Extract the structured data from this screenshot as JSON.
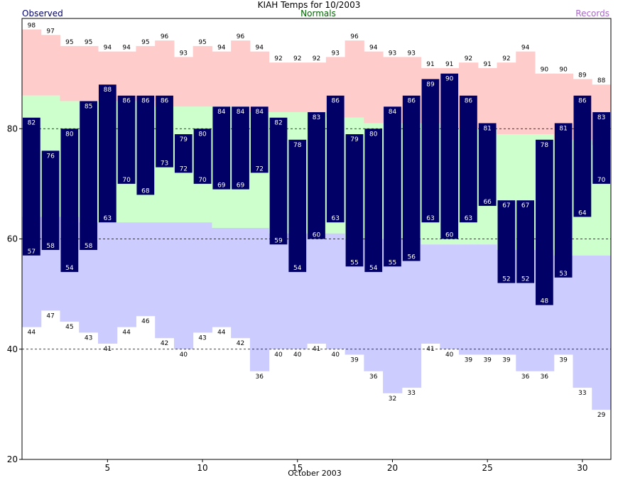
{
  "chart_data": {
    "type": "bar",
    "title": "KIAH Temps for 10/2003",
    "legend": {
      "observed": "Observed",
      "normals": "Normals",
      "records": "Records"
    },
    "xlabel": "October 2003",
    "ylabel": "",
    "ylim": [
      20,
      100
    ],
    "yticks": [
      20,
      40,
      60,
      80
    ],
    "xticks": [
      5,
      10,
      15,
      20,
      25,
      30
    ],
    "grid_y": [
      40,
      60,
      80
    ],
    "days": [
      1,
      2,
      3,
      4,
      5,
      6,
      7,
      8,
      9,
      10,
      11,
      12,
      13,
      14,
      15,
      16,
      17,
      18,
      19,
      20,
      21,
      22,
      23,
      24,
      25,
      26,
      27,
      28,
      29,
      30,
      31
    ],
    "observed_high": [
      82,
      76,
      80,
      85,
      88,
      86,
      86,
      86,
      79,
      80,
      84,
      84,
      84,
      82,
      78,
      83,
      86,
      79,
      80,
      84,
      86,
      89,
      90,
      86,
      81,
      67,
      67,
      78,
      81,
      86,
      83
    ],
    "observed_low": [
      57,
      58,
      54,
      58,
      63,
      70,
      68,
      73,
      72,
      70,
      69,
      69,
      72,
      59,
      54,
      60,
      63,
      55,
      54,
      55,
      56,
      63,
      60,
      63,
      66,
      52,
      52,
      48,
      53,
      64,
      70
    ],
    "normal_high": [
      86,
      86,
      85,
      85,
      85,
      85,
      85,
      84,
      84,
      84,
      84,
      84,
      83,
      83,
      83,
      83,
      82,
      82,
      81,
      81,
      81,
      81,
      80,
      80,
      80,
      79,
      79,
      79,
      78,
      78,
      77
    ],
    "normal_low": [
      64,
      64,
      64,
      63,
      63,
      63,
      63,
      63,
      63,
      63,
      62,
      62,
      62,
      61,
      61,
      61,
      61,
      60,
      60,
      60,
      60,
      59,
      59,
      59,
      59,
      58,
      58,
      58,
      57,
      57,
      57
    ],
    "record_high": [
      98,
      97,
      95,
      95,
      94,
      94,
      95,
      96,
      93,
      95,
      94,
      96,
      94,
      92,
      92,
      92,
      93,
      96,
      94,
      93,
      93,
      91,
      91,
      92,
      91,
      92,
      94,
      90,
      90,
      89,
      88
    ],
    "record_low": [
      44,
      47,
      45,
      43,
      41,
      44,
      46,
      42,
      40,
      43,
      44,
      42,
      36,
      40,
      40,
      41,
      40,
      39,
      36,
      32,
      33,
      41,
      40,
      39,
      39,
      39,
      36,
      36,
      39,
      33,
      29
    ],
    "colors": {
      "observed": "#000066",
      "normals": "#ccffcc",
      "records_high": "#ffcccc",
      "records_low": "#ccccff",
      "observed_text": "#000066",
      "normals_text": "#006600",
      "records_text": "#aa66cc",
      "grid": "#000000"
    }
  }
}
